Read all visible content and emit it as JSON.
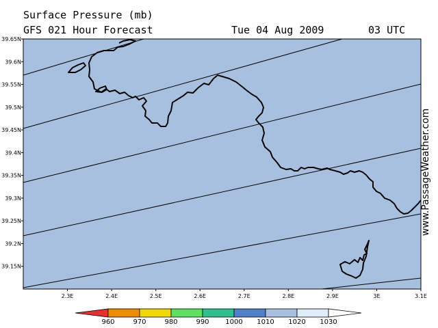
{
  "header": {
    "title": "Surface Pressure (mb)",
    "subtitle": "GFS 021 Hour Forecast",
    "date": "Tue 04 Aug 2009",
    "time": "03 UTC"
  },
  "credit": "www.PassageWeather.com",
  "map": {
    "lon_range": [
      2.2,
      3.1
    ],
    "lat_range": [
      39.1,
      39.65
    ],
    "lat_ticks": [
      "39.15N",
      "39.2N",
      "39.25N",
      "39.3N",
      "39.35N",
      "39.4N",
      "39.45N",
      "39.5N",
      "39.55N",
      "39.6N",
      "39.65N"
    ],
    "lon_ticks": [
      "2.3E",
      "2.4E",
      "2.5E",
      "2.6E",
      "2.7E",
      "2.8E",
      "2.9E",
      "3E",
      "3.1E"
    ],
    "fill_color": "#a8c0e0",
    "isobar_color": "#000000",
    "coast_color": "#000000"
  },
  "legend": {
    "labels": [
      "960",
      "970",
      "980",
      "990",
      "1000",
      "1010",
      "1020",
      "1030"
    ],
    "colors": [
      "#e83030",
      "#f08c00",
      "#f0d800",
      "#60e060",
      "#30c090",
      "#5080c8",
      "#a8c0e0",
      "#e0ecf8",
      "#ffffff"
    ]
  }
}
